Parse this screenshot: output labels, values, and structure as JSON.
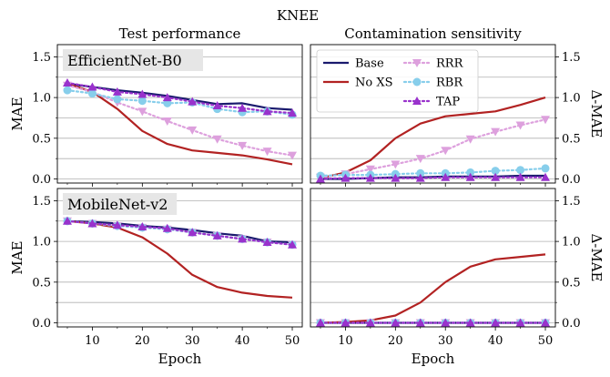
{
  "figure": {
    "suptitle": "KNEE"
  },
  "chart_data": [
    {
      "type": "line",
      "title": "Test performance",
      "panel_label": "EfficientNet-B0",
      "xlabel": "",
      "ylabel": "MAE",
      "x": [
        5,
        10,
        15,
        20,
        25,
        30,
        35,
        40,
        45,
        50
      ],
      "xticks": [
        "10",
        "20",
        "30",
        "40",
        "50"
      ],
      "yticks": [
        "0.0",
        "0.5",
        "1.0",
        "1.5"
      ],
      "xlim": [
        3,
        52
      ],
      "ylim": [
        -0.05,
        1.65
      ],
      "grid": "y",
      "series": [
        {
          "name": "Base",
          "color": "#1a1a6e",
          "style": "solid",
          "marker": "none",
          "values": [
            1.17,
            1.13,
            1.09,
            1.06,
            1.02,
            0.97,
            0.92,
            0.93,
            0.87,
            0.85
          ]
        },
        {
          "name": "No XS",
          "color": "#b22222",
          "style": "solid",
          "marker": "none",
          "values": [
            1.17,
            1.07,
            0.86,
            0.59,
            0.43,
            0.35,
            0.32,
            0.29,
            0.24,
            0.18
          ]
        },
        {
          "name": "RRR",
          "color": "#dda0dd",
          "style": "dotted",
          "marker": "triangle-down",
          "values": [
            1.15,
            1.07,
            0.94,
            0.83,
            0.71,
            0.6,
            0.49,
            0.41,
            0.34,
            0.29
          ]
        },
        {
          "name": "RBR",
          "color": "#87ceeb",
          "style": "dotted",
          "marker": "circle",
          "values": [
            1.09,
            1.05,
            0.98,
            0.96,
            0.93,
            0.94,
            0.86,
            0.82,
            0.83,
            0.79
          ]
        },
        {
          "name": "TAP",
          "color": "#9932cc",
          "style": "dotted",
          "marker": "triangle-up",
          "values": [
            1.18,
            1.13,
            1.07,
            1.04,
            1.0,
            0.95,
            0.9,
            0.87,
            0.83,
            0.81
          ]
        }
      ]
    },
    {
      "type": "line",
      "title": "Contamination sensitivity",
      "xlabel": "",
      "ylabel": "Δ-MAE",
      "x": [
        5,
        10,
        15,
        20,
        25,
        30,
        35,
        40,
        45,
        50
      ],
      "xticks": [
        "10",
        "20",
        "30",
        "40",
        "50"
      ],
      "yticks": [
        "0.0",
        "0.5",
        "1.0",
        "1.5"
      ],
      "xlim": [
        3,
        52
      ],
      "ylim": [
        -0.05,
        1.65
      ],
      "grid": "y",
      "legend": "top-left",
      "series": [
        {
          "name": "Base",
          "color": "#1a1a6e",
          "style": "solid",
          "marker": "none",
          "values": [
            0.0,
            0.0,
            0.01,
            0.02,
            0.02,
            0.03,
            0.03,
            0.03,
            0.04,
            0.04
          ]
        },
        {
          "name": "No XS",
          "color": "#b22222",
          "style": "solid",
          "marker": "none",
          "values": [
            0.01,
            0.08,
            0.23,
            0.5,
            0.68,
            0.77,
            0.8,
            0.83,
            0.91,
            1.0
          ]
        },
        {
          "name": "RRR",
          "color": "#dda0dd",
          "style": "dotted",
          "marker": "triangle-down",
          "values": [
            0.02,
            0.06,
            0.12,
            0.18,
            0.25,
            0.35,
            0.49,
            0.58,
            0.66,
            0.73
          ]
        },
        {
          "name": "RBR",
          "color": "#87ceeb",
          "style": "dotted",
          "marker": "circle",
          "values": [
            0.04,
            0.05,
            0.05,
            0.06,
            0.07,
            0.07,
            0.08,
            0.1,
            0.11,
            0.13
          ]
        },
        {
          "name": "TAP",
          "color": "#9932cc",
          "style": "dotted",
          "marker": "triangle-up",
          "values": [
            0.0,
            0.01,
            0.01,
            0.01,
            0.01,
            0.02,
            0.02,
            0.02,
            0.02,
            0.02
          ]
        }
      ]
    },
    {
      "type": "line",
      "panel_label": "MobileNet-v2",
      "xlabel": "Epoch",
      "ylabel": "MAE",
      "x": [
        5,
        10,
        15,
        20,
        25,
        30,
        35,
        40,
        45,
        50
      ],
      "xticks": [
        "10",
        "20",
        "30",
        "40",
        "50"
      ],
      "yticks": [
        "0.0",
        "0.5",
        "1.0",
        "1.5"
      ],
      "xlim": [
        3,
        52
      ],
      "ylim": [
        -0.05,
        1.65
      ],
      "grid": "y",
      "series": [
        {
          "name": "Base",
          "color": "#1a1a6e",
          "style": "solid",
          "marker": "none",
          "values": [
            1.25,
            1.24,
            1.22,
            1.19,
            1.17,
            1.14,
            1.1,
            1.07,
            1.0,
            0.99
          ]
        },
        {
          "name": "No XS",
          "color": "#b22222",
          "style": "solid",
          "marker": "none",
          "values": [
            1.25,
            1.22,
            1.17,
            1.05,
            0.85,
            0.59,
            0.44,
            0.37,
            0.33,
            0.31
          ]
        },
        {
          "name": "RRR",
          "color": "#dda0dd",
          "style": "dotted",
          "marker": "triangle-down",
          "values": [
            1.25,
            1.22,
            1.19,
            1.17,
            1.15,
            1.11,
            1.07,
            1.03,
            0.99,
            0.96
          ]
        },
        {
          "name": "RBR",
          "color": "#87ceeb",
          "style": "dotted",
          "marker": "circle",
          "values": [
            1.25,
            1.22,
            1.19,
            1.17,
            1.15,
            1.11,
            1.07,
            1.03,
            0.99,
            0.96
          ]
        },
        {
          "name": "TAP",
          "color": "#9932cc",
          "style": "dotted",
          "marker": "triangle-up",
          "values": [
            1.25,
            1.22,
            1.2,
            1.18,
            1.16,
            1.11,
            1.07,
            1.03,
            0.99,
            0.96
          ]
        }
      ]
    },
    {
      "type": "line",
      "xlabel": "Epoch",
      "ylabel": "Δ-MAE",
      "x": [
        5,
        10,
        15,
        20,
        25,
        30,
        35,
        40,
        45,
        50
      ],
      "xticks": [
        "10",
        "20",
        "30",
        "40",
        "50"
      ],
      "yticks": [
        "0.0",
        "0.5",
        "1.0",
        "1.5"
      ],
      "xlim": [
        3,
        52
      ],
      "ylim": [
        -0.05,
        1.65
      ],
      "grid": "y",
      "series": [
        {
          "name": "Base",
          "color": "#1a1a6e",
          "style": "solid",
          "marker": "none",
          "values": [
            0.0,
            0.0,
            0.0,
            0.0,
            0.0,
            0.0,
            0.0,
            0.0,
            0.0,
            0.0
          ]
        },
        {
          "name": "No XS",
          "color": "#b22222",
          "style": "solid",
          "marker": "none",
          "values": [
            0.0,
            0.01,
            0.03,
            0.09,
            0.25,
            0.5,
            0.69,
            0.78,
            0.81,
            0.84
          ]
        },
        {
          "name": "RRR",
          "color": "#dda0dd",
          "style": "dotted",
          "marker": "triangle-down",
          "values": [
            0.0,
            0.0,
            0.0,
            0.0,
            0.0,
            0.0,
            0.0,
            0.0,
            0.0,
            0.0
          ]
        },
        {
          "name": "RBR",
          "color": "#87ceeb",
          "style": "dotted",
          "marker": "circle",
          "values": [
            0.0,
            0.0,
            0.0,
            0.0,
            0.0,
            0.0,
            0.0,
            0.0,
            0.0,
            0.0
          ]
        },
        {
          "name": "TAP",
          "color": "#9932cc",
          "style": "dotted",
          "marker": "triangle-up",
          "values": [
            0.0,
            0.0,
            0.0,
            0.0,
            0.0,
            0.0,
            0.0,
            0.0,
            0.0,
            0.0
          ]
        }
      ]
    }
  ]
}
